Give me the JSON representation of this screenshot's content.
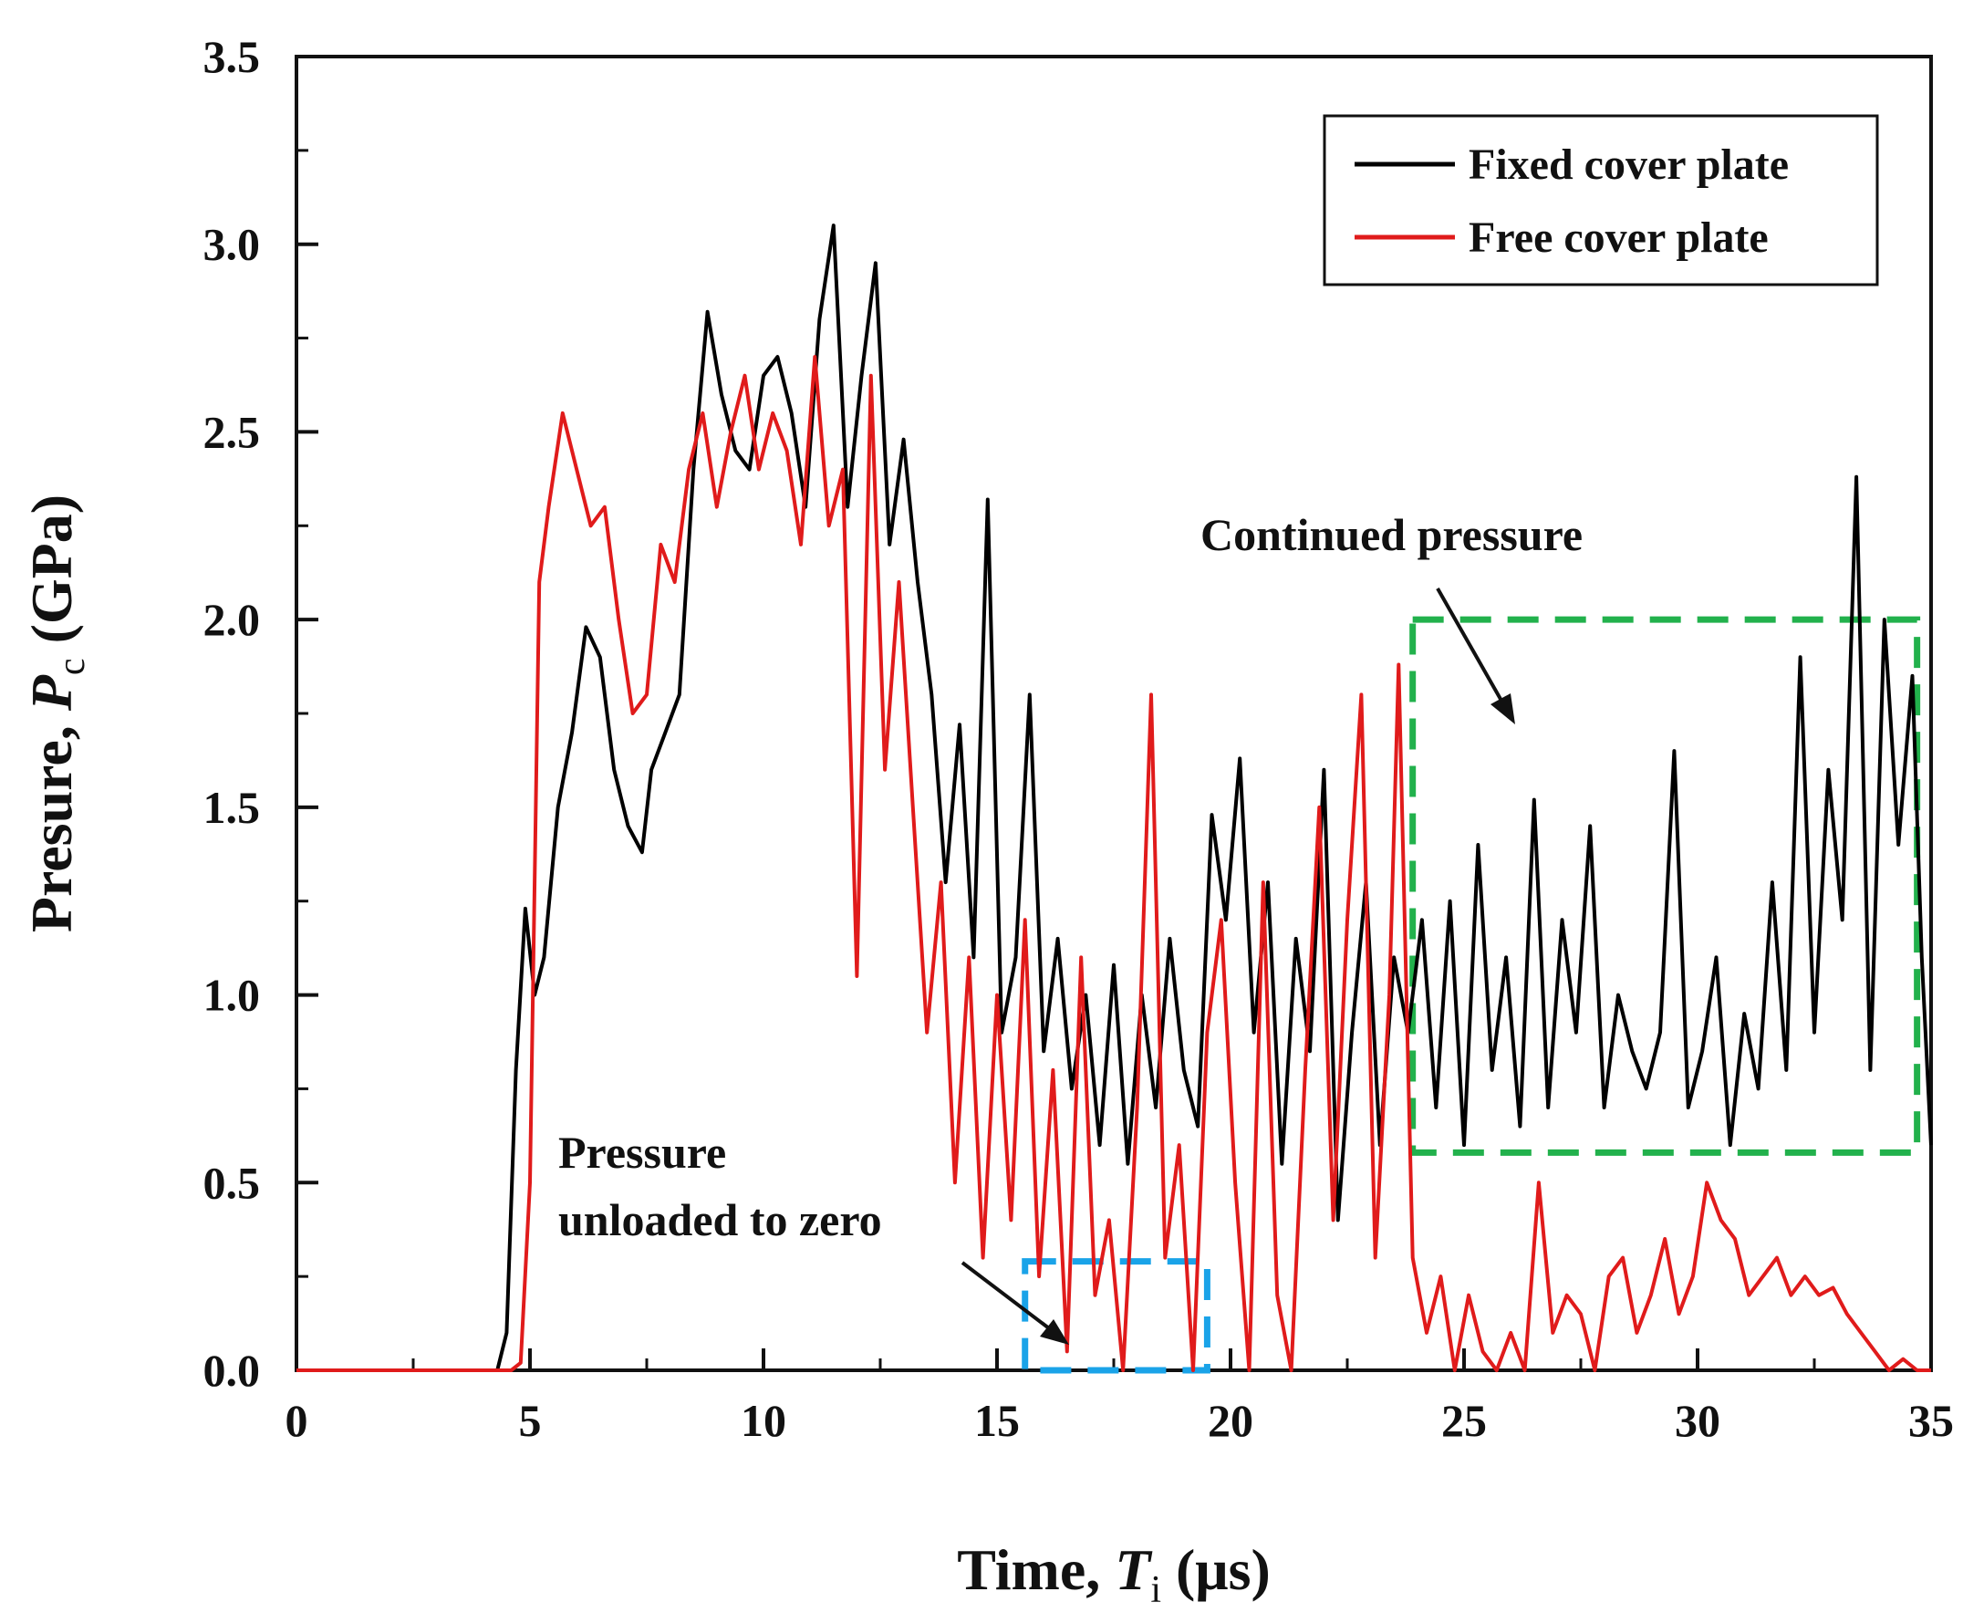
{
  "chart_data": {
    "type": "line",
    "xlabel_prefix": "Time, ",
    "xlabel_var": "T",
    "xlabel_sub": "i",
    "xlabel_unit": " (μs)",
    "ylabel_prefix": "Presure, ",
    "ylabel_var": "P",
    "ylabel_sub": "c",
    "ylabel_unit": " (GPa)",
    "xlim": [
      0,
      35
    ],
    "ylim": [
      0,
      3.5
    ],
    "xticks": [
      0,
      5,
      10,
      15,
      20,
      25,
      30,
      35
    ],
    "yticks": [
      0,
      0.5,
      1.0,
      1.5,
      2.0,
      2.5,
      3.0,
      3.5
    ],
    "xtick_labels": [
      "0",
      "5",
      "10",
      "15",
      "20",
      "25",
      "30",
      "35"
    ],
    "ytick_labels": [
      "0.0",
      "0.5",
      "1.0",
      "1.5",
      "2.0",
      "2.5",
      "3.0",
      "3.5"
    ],
    "legend_position": "top-right",
    "series": [
      {
        "name": "Fixed cover plate",
        "color": "#000000",
        "x": [
          0,
          4.3,
          4.5,
          4.7,
          4.9,
          5.1,
          5.3,
          5.6,
          5.9,
          6.2,
          6.5,
          6.8,
          7.1,
          7.4,
          7.6,
          7.9,
          8.2,
          8.5,
          8.8,
          9.1,
          9.4,
          9.7,
          10.0,
          10.3,
          10.6,
          10.9,
          11.2,
          11.5,
          11.8,
          12.1,
          12.4,
          12.7,
          13.0,
          13.3,
          13.6,
          13.9,
          14.2,
          14.5,
          14.8,
          15.1,
          15.4,
          15.7,
          16.0,
          16.3,
          16.6,
          16.9,
          17.2,
          17.5,
          17.8,
          18.1,
          18.4,
          18.7,
          19.0,
          19.3,
          19.6,
          19.9,
          20.2,
          20.5,
          20.8,
          21.1,
          21.4,
          21.7,
          22.0,
          22.3,
          22.6,
          22.9,
          23.2,
          23.5,
          23.8,
          24.1,
          24.4,
          24.7,
          25.0,
          25.3,
          25.6,
          25.9,
          26.2,
          26.5,
          26.8,
          27.1,
          27.4,
          27.7,
          28.0,
          28.3,
          28.6,
          28.9,
          29.2,
          29.5,
          29.8,
          30.1,
          30.4,
          30.7,
          31.0,
          31.3,
          31.6,
          31.9,
          32.2,
          32.5,
          32.8,
          33.1,
          33.4,
          33.7,
          34.0,
          34.3,
          34.6,
          34.8,
          35.0
        ],
        "values": [
          0,
          0,
          0.1,
          0.8,
          1.23,
          1.0,
          1.1,
          1.5,
          1.7,
          1.98,
          1.9,
          1.6,
          1.45,
          1.38,
          1.6,
          1.7,
          1.8,
          2.4,
          2.82,
          2.6,
          2.45,
          2.4,
          2.65,
          2.7,
          2.55,
          2.3,
          2.8,
          3.05,
          2.3,
          2.65,
          2.95,
          2.2,
          2.48,
          2.1,
          1.8,
          1.3,
          1.72,
          1.1,
          2.32,
          0.9,
          1.1,
          1.8,
          0.85,
          1.15,
          0.75,
          1.0,
          0.6,
          1.08,
          0.55,
          1.0,
          0.7,
          1.15,
          0.8,
          0.65,
          1.48,
          1.2,
          1.63,
          0.9,
          1.3,
          0.55,
          1.15,
          0.85,
          1.6,
          0.4,
          0.9,
          1.3,
          0.6,
          1.1,
          0.9,
          1.2,
          0.7,
          1.25,
          0.6,
          1.4,
          0.8,
          1.1,
          0.65,
          1.52,
          0.7,
          1.2,
          0.9,
          1.45,
          0.7,
          1.0,
          0.85,
          0.75,
          0.9,
          1.65,
          0.7,
          0.85,
          1.1,
          0.6,
          0.95,
          0.75,
          1.3,
          0.8,
          1.9,
          0.9,
          1.6,
          1.2,
          2.38,
          0.8,
          2.0,
          1.4,
          1.85,
          1.1,
          0.6
        ]
      },
      {
        "name": "Free cover plate",
        "color": "#e01b1b",
        "x": [
          0,
          4.6,
          4.8,
          5.0,
          5.2,
          5.4,
          5.7,
          6.0,
          6.3,
          6.6,
          6.9,
          7.2,
          7.5,
          7.8,
          8.1,
          8.4,
          8.7,
          9.0,
          9.3,
          9.6,
          9.9,
          10.2,
          10.5,
          10.8,
          11.1,
          11.4,
          11.7,
          12.0,
          12.3,
          12.6,
          12.9,
          13.2,
          13.5,
          13.8,
          14.1,
          14.4,
          14.7,
          15.0,
          15.3,
          15.6,
          15.9,
          16.2,
          16.5,
          16.8,
          17.1,
          17.4,
          17.7,
          18.0,
          18.3,
          18.6,
          18.9,
          19.2,
          19.5,
          19.8,
          20.1,
          20.4,
          20.7,
          21.0,
          21.3,
          21.6,
          21.9,
          22.2,
          22.5,
          22.8,
          23.1,
          23.4,
          23.6,
          23.9,
          24.2,
          24.5,
          24.8,
          25.1,
          25.4,
          25.7,
          26.0,
          26.3,
          26.6,
          26.9,
          27.2,
          27.5,
          27.8,
          28.1,
          28.4,
          28.7,
          29.0,
          29.3,
          29.6,
          29.9,
          30.2,
          30.5,
          30.8,
          31.1,
          31.4,
          31.7,
          32.0,
          32.3,
          32.6,
          32.9,
          33.2,
          33.5,
          33.8,
          34.1,
          34.4,
          34.7,
          35.0
        ],
        "values": [
          0,
          0,
          0.02,
          0.5,
          2.1,
          2.3,
          2.55,
          2.4,
          2.25,
          2.3,
          2.0,
          1.75,
          1.8,
          2.2,
          2.1,
          2.4,
          2.55,
          2.3,
          2.5,
          2.65,
          2.4,
          2.55,
          2.45,
          2.2,
          2.7,
          2.25,
          2.4,
          1.05,
          2.65,
          1.6,
          2.1,
          1.5,
          0.9,
          1.3,
          0.5,
          1.1,
          0.3,
          1.0,
          0.4,
          1.2,
          0.25,
          0.8,
          0.05,
          1.1,
          0.2,
          0.4,
          0.0,
          0.7,
          1.8,
          0.3,
          0.6,
          0.0,
          0.9,
          1.2,
          0.5,
          0.0,
          1.3,
          0.2,
          0.0,
          0.8,
          1.5,
          0.4,
          1.2,
          1.8,
          0.3,
          1.0,
          1.88,
          0.3,
          0.1,
          0.25,
          0.0,
          0.2,
          0.05,
          0.0,
          0.1,
          0.0,
          0.5,
          0.1,
          0.2,
          0.15,
          0.0,
          0.25,
          0.3,
          0.1,
          0.2,
          0.35,
          0.15,
          0.25,
          0.5,
          0.4,
          0.35,
          0.2,
          0.25,
          0.3,
          0.2,
          0.25,
          0.2,
          0.22,
          0.15,
          0.1,
          0.05,
          0.0,
          0.03,
          0.0,
          0.0
        ]
      }
    ],
    "annotations": {
      "continued_pressure": "Continued pressure",
      "unloaded_line1": "Pressure",
      "unloaded_line2": "unloaded to zero"
    },
    "highlight_boxes": [
      {
        "name": "continued-pressure-box",
        "color": "#22b14c",
        "x": [
          23.9,
          34.7
        ],
        "y": [
          0.58,
          2.0
        ]
      },
      {
        "name": "unloaded-box",
        "color": "#1aa3e8",
        "x": [
          15.6,
          19.5
        ],
        "y": [
          0.0,
          0.29
        ]
      }
    ]
  }
}
